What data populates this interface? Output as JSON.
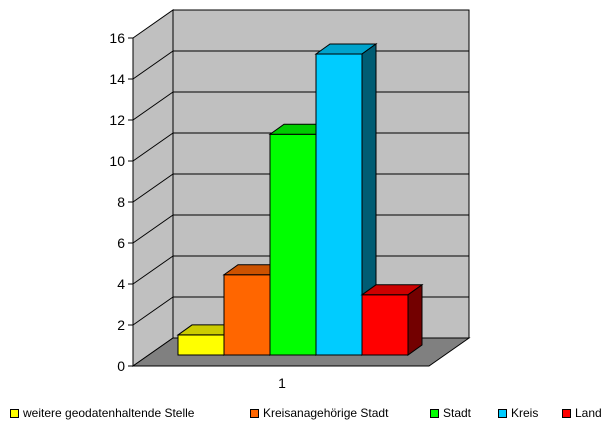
{
  "chart_data": {
    "type": "bar",
    "categories": [
      "1"
    ],
    "series": [
      {
        "name": "weitere geodatenhaltende Stelle",
        "values": [
          1
        ],
        "color": "#ffff00"
      },
      {
        "name": "Kreisanagehörige Stadt",
        "values": [
          4
        ],
        "color": "#ff6600"
      },
      {
        "name": "Stadt",
        "values": [
          11
        ],
        "color": "#00ff00"
      },
      {
        "name": "Kreis",
        "values": [
          15
        ],
        "color": "#00ccff"
      },
      {
        "name": "Land",
        "values": [
          3
        ],
        "color": "#ff0000"
      }
    ],
    "ylim": [
      0,
      16
    ],
    "yticks": [
      "0",
      "2",
      "4",
      "6",
      "8",
      "10",
      "12",
      "14",
      "16"
    ],
    "grid": true,
    "style": "3d-clustered-column",
    "wall_color": "#c0c0c0",
    "floor_color": "#808080",
    "legend_position": "bottom"
  }
}
